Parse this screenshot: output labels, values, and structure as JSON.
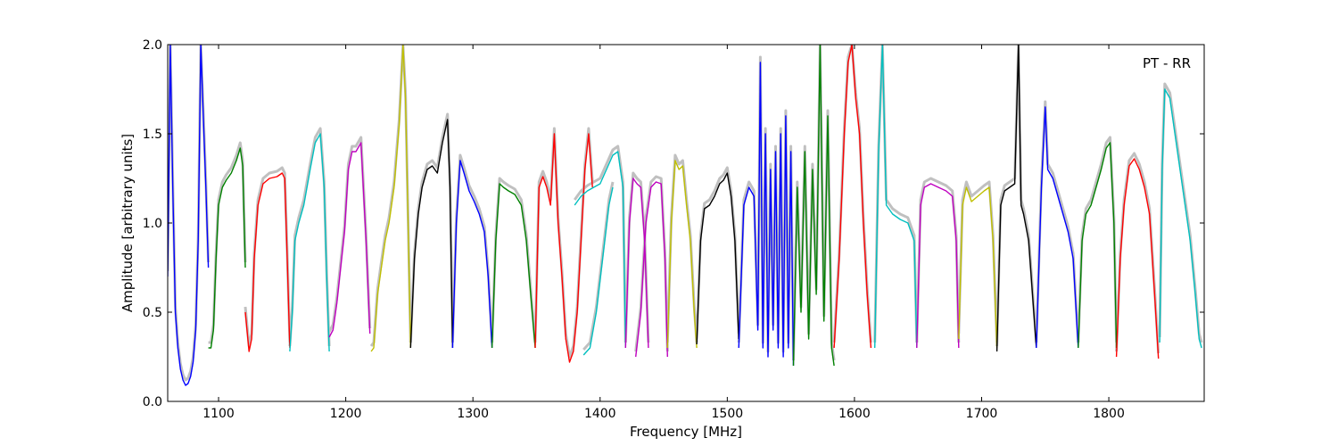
{
  "chart_data": {
    "type": "line",
    "title": "",
    "xlabel": "Frequency [MHz]",
    "ylabel": "Amplitude [arbitrary units]",
    "xlim": [
      1060,
      1875
    ],
    "ylim": [
      0,
      2.0
    ],
    "xticks": [
      1100,
      1200,
      1300,
      1400,
      1500,
      1600,
      1700,
      1800
    ],
    "yticks": [
      0.0,
      0.5,
      1.0,
      1.5,
      2.0
    ],
    "xtick_labels": [
      "1100",
      "1200",
      "1300",
      "1400",
      "1500",
      "1600",
      "1700",
      "1800"
    ],
    "ytick_labels": [
      "0.0",
      "0.5",
      "1.0",
      "1.5",
      "2.0"
    ],
    "grid": false,
    "annotation": "PT - RR",
    "annotation_placement": "top-right",
    "background_series_color": "#c0c0c0",
    "series": [
      {
        "color": "#0000ff",
        "x": [
          1060,
          1062,
          1064,
          1066,
          1068,
          1070,
          1072,
          1074,
          1076,
          1078,
          1080,
          1082,
          1084,
          1086,
          1088,
          1090,
          1092
        ],
        "y": [
          0.7,
          2.0,
          1.2,
          0.5,
          0.3,
          0.18,
          0.12,
          0.09,
          0.1,
          0.14,
          0.22,
          0.4,
          0.9,
          2.0,
          1.6,
          1.2,
          0.75
        ]
      },
      {
        "color": "#008000",
        "x": [
          1092,
          1094,
          1096,
          1098,
          1100,
          1103,
          1106,
          1110,
          1114,
          1117,
          1119,
          1121
        ],
        "y": [
          0.3,
          0.3,
          0.4,
          0.8,
          1.1,
          1.2,
          1.24,
          1.28,
          1.35,
          1.42,
          1.32,
          0.75
        ]
      },
      {
        "color": "#ff0000",
        "x": [
          1121,
          1124,
          1126,
          1128,
          1131,
          1135,
          1140,
          1146,
          1150,
          1152,
          1154,
          1156
        ],
        "y": [
          0.5,
          0.28,
          0.35,
          0.8,
          1.1,
          1.22,
          1.25,
          1.26,
          1.28,
          1.25,
          0.8,
          0.3
        ]
      },
      {
        "color": "#00bfbf",
        "x": [
          1156,
          1158,
          1160,
          1163,
          1167,
          1172,
          1176,
          1180,
          1183,
          1185,
          1187
        ],
        "y": [
          0.28,
          0.5,
          0.9,
          1.0,
          1.1,
          1.3,
          1.45,
          1.5,
          1.2,
          0.7,
          0.28
        ]
      },
      {
        "color": "#bf00bf",
        "x": [
          1187,
          1190,
          1193,
          1196,
          1199,
          1202,
          1205,
          1208,
          1212,
          1216,
          1219
        ],
        "y": [
          0.36,
          0.4,
          0.55,
          0.75,
          0.95,
          1.3,
          1.4,
          1.4,
          1.45,
          0.9,
          0.38
        ]
      },
      {
        "color": "#bfbf00",
        "x": [
          1220,
          1222,
          1225,
          1228,
          1231,
          1234,
          1238,
          1242,
          1245,
          1247,
          1249,
          1251
        ],
        "y": [
          0.28,
          0.3,
          0.6,
          0.75,
          0.9,
          1.0,
          1.2,
          1.55,
          2.0,
          1.7,
          1.0,
          0.3
        ]
      },
      {
        "color": "#000000",
        "x": [
          1251,
          1254,
          1257,
          1260,
          1264,
          1268,
          1272,
          1276,
          1280,
          1282,
          1284
        ],
        "y": [
          0.3,
          0.8,
          1.05,
          1.2,
          1.3,
          1.32,
          1.28,
          1.45,
          1.58,
          1.2,
          0.3
        ]
      },
      {
        "color": "#0000ff",
        "x": [
          1284,
          1287,
          1290,
          1293,
          1297,
          1301,
          1305,
          1309,
          1312,
          1315
        ],
        "y": [
          0.3,
          1.0,
          1.35,
          1.28,
          1.18,
          1.12,
          1.05,
          0.95,
          0.7,
          0.3
        ]
      },
      {
        "color": "#008000",
        "x": [
          1315,
          1318,
          1321,
          1324,
          1328,
          1333,
          1338,
          1342,
          1346,
          1349
        ],
        "y": [
          0.3,
          0.9,
          1.22,
          1.2,
          1.18,
          1.16,
          1.1,
          0.9,
          0.55,
          0.3
        ]
      },
      {
        "color": "#ff0000",
        "x": [
          1349,
          1352,
          1355,
          1358,
          1361,
          1364,
          1367,
          1370,
          1373,
          1376,
          1379,
          1382,
          1385,
          1388,
          1391,
          1394
        ],
        "y": [
          0.3,
          1.2,
          1.26,
          1.2,
          1.1,
          1.5,
          1.0,
          0.7,
          0.35,
          0.22,
          0.28,
          0.5,
          0.9,
          1.3,
          1.5,
          1.2
        ]
      },
      {
        "color": "#00bfbf",
        "x": [
          1380,
          1385,
          1390,
          1395,
          1400,
          1405,
          1410,
          1414,
          1418,
          1420
        ],
        "y": [
          1.1,
          1.15,
          1.18,
          1.2,
          1.22,
          1.3,
          1.38,
          1.4,
          1.2,
          0.3
        ]
      },
      {
        "color": "#00bfbf",
        "x": [
          1387,
          1392,
          1397,
          1402,
          1407,
          1410
        ],
        "y": [
          0.26,
          0.3,
          0.5,
          0.8,
          1.1,
          1.2
        ]
      },
      {
        "color": "#bf00bf",
        "x": [
          1420,
          1423,
          1426,
          1429,
          1432,
          1435,
          1438
        ],
        "y": [
          0.3,
          1.0,
          1.25,
          1.22,
          1.2,
          0.9,
          0.3
        ]
      },
      {
        "color": "#bf00bf",
        "x": [
          1428,
          1432,
          1436,
          1440,
          1444,
          1448,
          1451,
          1453
        ],
        "y": [
          0.25,
          0.5,
          1.0,
          1.2,
          1.23,
          1.22,
          0.8,
          0.25
        ]
      },
      {
        "color": "#bfbf00",
        "x": [
          1453,
          1456,
          1459,
          1462,
          1465,
          1468,
          1471,
          1474,
          1476
        ],
        "y": [
          0.3,
          1.0,
          1.35,
          1.3,
          1.32,
          1.1,
          0.9,
          0.5,
          0.3
        ]
      },
      {
        "color": "#000000",
        "x": [
          1476,
          1479,
          1482,
          1486,
          1490,
          1494,
          1497,
          1500,
          1503,
          1506,
          1509
        ],
        "y": [
          0.32,
          0.9,
          1.08,
          1.1,
          1.15,
          1.22,
          1.24,
          1.28,
          1.15,
          0.9,
          0.35
        ]
      },
      {
        "color": "#0000ff",
        "x": [
          1509,
          1513,
          1517,
          1521,
          1524,
          1526,
          1528,
          1530,
          1532,
          1534,
          1536,
          1538,
          1540,
          1542,
          1544,
          1546,
          1548,
          1550,
          1552
        ],
        "y": [
          0.3,
          1.1,
          1.2,
          1.15,
          0.4,
          1.9,
          0.3,
          1.5,
          0.25,
          1.3,
          0.4,
          1.4,
          0.3,
          1.5,
          0.25,
          1.6,
          0.3,
          1.4,
          0.2
        ]
      },
      {
        "color": "#008000",
        "x": [
          1552,
          1555,
          1558,
          1561,
          1564,
          1567,
          1570,
          1573,
          1576,
          1579,
          1582,
          1584
        ],
        "y": [
          0.2,
          1.2,
          0.5,
          1.4,
          0.35,
          1.3,
          0.6,
          2.0,
          0.45,
          1.6,
          0.3,
          0.2
        ]
      },
      {
        "color": "#ff0000",
        "x": [
          1584,
          1588,
          1592,
          1595,
          1598,
          1601,
          1604,
          1607,
          1610,
          1613
        ],
        "y": [
          0.3,
          0.8,
          1.5,
          1.9,
          2.0,
          1.7,
          1.5,
          1.0,
          0.6,
          0.3
        ]
      },
      {
        "color": "#00bfbf",
        "x": [
          1616,
          1619,
          1622,
          1625,
          1630,
          1636,
          1642,
          1647,
          1649
        ],
        "y": [
          0.3,
          1.4,
          2.0,
          1.1,
          1.05,
          1.02,
          1.0,
          0.9,
          0.3
        ]
      },
      {
        "color": "#bf00bf",
        "x": [
          1649,
          1652,
          1655,
          1660,
          1666,
          1672,
          1677,
          1680,
          1682
        ],
        "y": [
          0.3,
          1.1,
          1.2,
          1.22,
          1.2,
          1.18,
          1.15,
          0.9,
          0.3
        ]
      },
      {
        "color": "#bfbf00",
        "x": [
          1682,
          1685,
          1688,
          1692,
          1697,
          1702,
          1706,
          1709,
          1712
        ],
        "y": [
          0.35,
          1.1,
          1.2,
          1.12,
          1.15,
          1.18,
          1.2,
          0.9,
          0.3
        ]
      },
      {
        "color": "#000000",
        "x": [
          1712,
          1715,
          1718,
          1722,
          1726,
          1729,
          1731,
          1733,
          1737,
          1740,
          1743
        ],
        "y": [
          0.28,
          1.1,
          1.18,
          1.2,
          1.22,
          2.0,
          1.1,
          1.05,
          0.9,
          0.6,
          0.3
        ]
      },
      {
        "color": "#0000ff",
        "x": [
          1743,
          1747,
          1750,
          1752,
          1756,
          1760,
          1764,
          1768,
          1772,
          1776
        ],
        "y": [
          0.3,
          1.2,
          1.65,
          1.3,
          1.25,
          1.15,
          1.05,
          0.95,
          0.8,
          0.3
        ]
      },
      {
        "color": "#008000",
        "x": [
          1776,
          1779,
          1782,
          1786,
          1790,
          1794,
          1798,
          1801,
          1804,
          1806
        ],
        "y": [
          0.3,
          0.9,
          1.05,
          1.1,
          1.2,
          1.3,
          1.42,
          1.45,
          1.0,
          0.3
        ]
      },
      {
        "color": "#ff0000",
        "x": [
          1806,
          1809,
          1812,
          1816,
          1820,
          1824,
          1828,
          1832,
          1836,
          1839
        ],
        "y": [
          0.25,
          0.8,
          1.1,
          1.32,
          1.36,
          1.3,
          1.2,
          1.05,
          0.6,
          0.24
        ]
      },
      {
        "color": "#00bfbf",
        "x": [
          1840,
          1842,
          1844,
          1848,
          1852,
          1856,
          1860,
          1864,
          1868,
          1871,
          1873
        ],
        "y": [
          0.33,
          1.3,
          1.75,
          1.7,
          1.5,
          1.3,
          1.1,
          0.9,
          0.6,
          0.35,
          0.3
        ]
      }
    ]
  }
}
